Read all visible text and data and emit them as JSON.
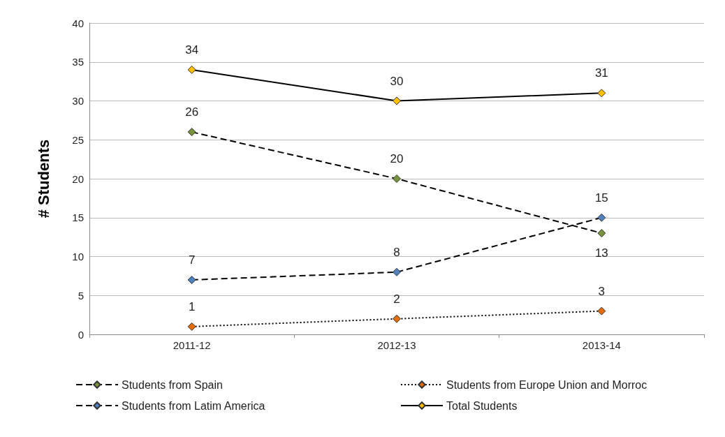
{
  "chart_data": {
    "type": "line",
    "ylabel": "# Students",
    "categories": [
      "2011-12",
      "2012-13",
      "2013-14"
    ],
    "series": [
      {
        "name": "Students from Spain",
        "color": "#77933c",
        "values": [
          26,
          20,
          13
        ],
        "line_style": "dashed"
      },
      {
        "name": "Students from Europe Union and Morroc",
        "color": "#e46c0a",
        "values": [
          1,
          2,
          3
        ],
        "line_style": "dotted"
      },
      {
        "name": "Students from Latim America",
        "color": "#4f81bd",
        "values": [
          7,
          8,
          15
        ],
        "line_style": "dashed"
      },
      {
        "name": "Total Students",
        "color": "#ffc000",
        "values": [
          34,
          30,
          31
        ],
        "line_style": "solid"
      }
    ],
    "ylim": [
      0,
      40
    ],
    "yticks": [
      0,
      5,
      10,
      15,
      20,
      25,
      30,
      35,
      40
    ],
    "grid": "y",
    "legend": "bottom",
    "marker": "diamond",
    "data_labels": true
  }
}
